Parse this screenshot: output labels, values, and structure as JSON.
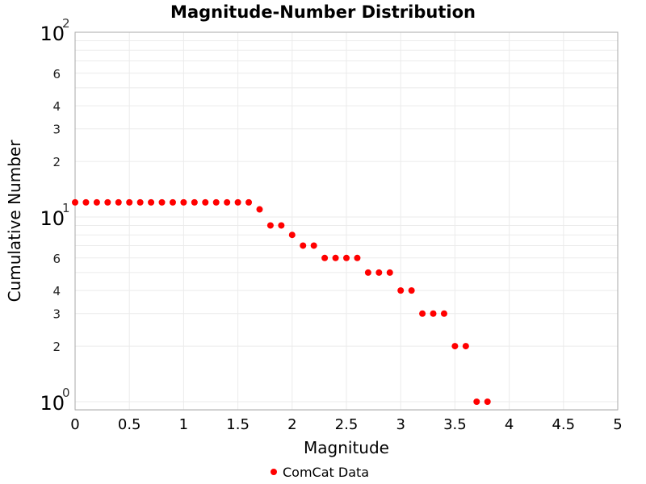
{
  "chart_data": {
    "type": "scatter",
    "title": "Magnitude-Number Distribution",
    "xlabel": "Magnitude",
    "ylabel": "Cumulative Number",
    "xlim": [
      0,
      5
    ],
    "ylim": [
      0.9,
      100
    ],
    "yscale": "log",
    "grid": true,
    "legend_position": "bottom",
    "x_ticks": [
      "0",
      "0.5",
      "1",
      "1.5",
      "2",
      "2.5",
      "3",
      "3.5",
      "4",
      "4.5",
      "5"
    ],
    "y_major_ticks": [
      {
        "base": "10",
        "exp": "0"
      },
      {
        "base": "10",
        "exp": "1"
      },
      {
        "base": "10",
        "exp": "2"
      }
    ],
    "y_minor_tick_labels": [
      "2",
      "3",
      "4",
      "6",
      "2",
      "3",
      "4",
      "6"
    ],
    "series": [
      {
        "name": "ComCat Data",
        "color": "#ff0000",
        "x": [
          0,
          0.1,
          0.2,
          0.3,
          0.4,
          0.5,
          0.6,
          0.7,
          0.8,
          0.9,
          1.0,
          1.1,
          1.2,
          1.3,
          1.4,
          1.5,
          1.6,
          1.7,
          1.8,
          1.9,
          2.0,
          2.1,
          2.2,
          2.3,
          2.4,
          2.5,
          2.6,
          2.7,
          2.8,
          2.9,
          3.0,
          3.1,
          3.2,
          3.3,
          3.4,
          3.5,
          3.6,
          3.7,
          3.8
        ],
        "y": [
          12,
          12,
          12,
          12,
          12,
          12,
          12,
          12,
          12,
          12,
          12,
          12,
          12,
          12,
          12,
          12,
          12,
          11,
          9,
          9,
          8,
          7,
          7,
          6,
          6,
          6,
          6,
          5,
          5,
          5,
          4,
          4,
          3,
          3,
          3,
          2,
          2,
          1,
          1
        ]
      }
    ]
  }
}
